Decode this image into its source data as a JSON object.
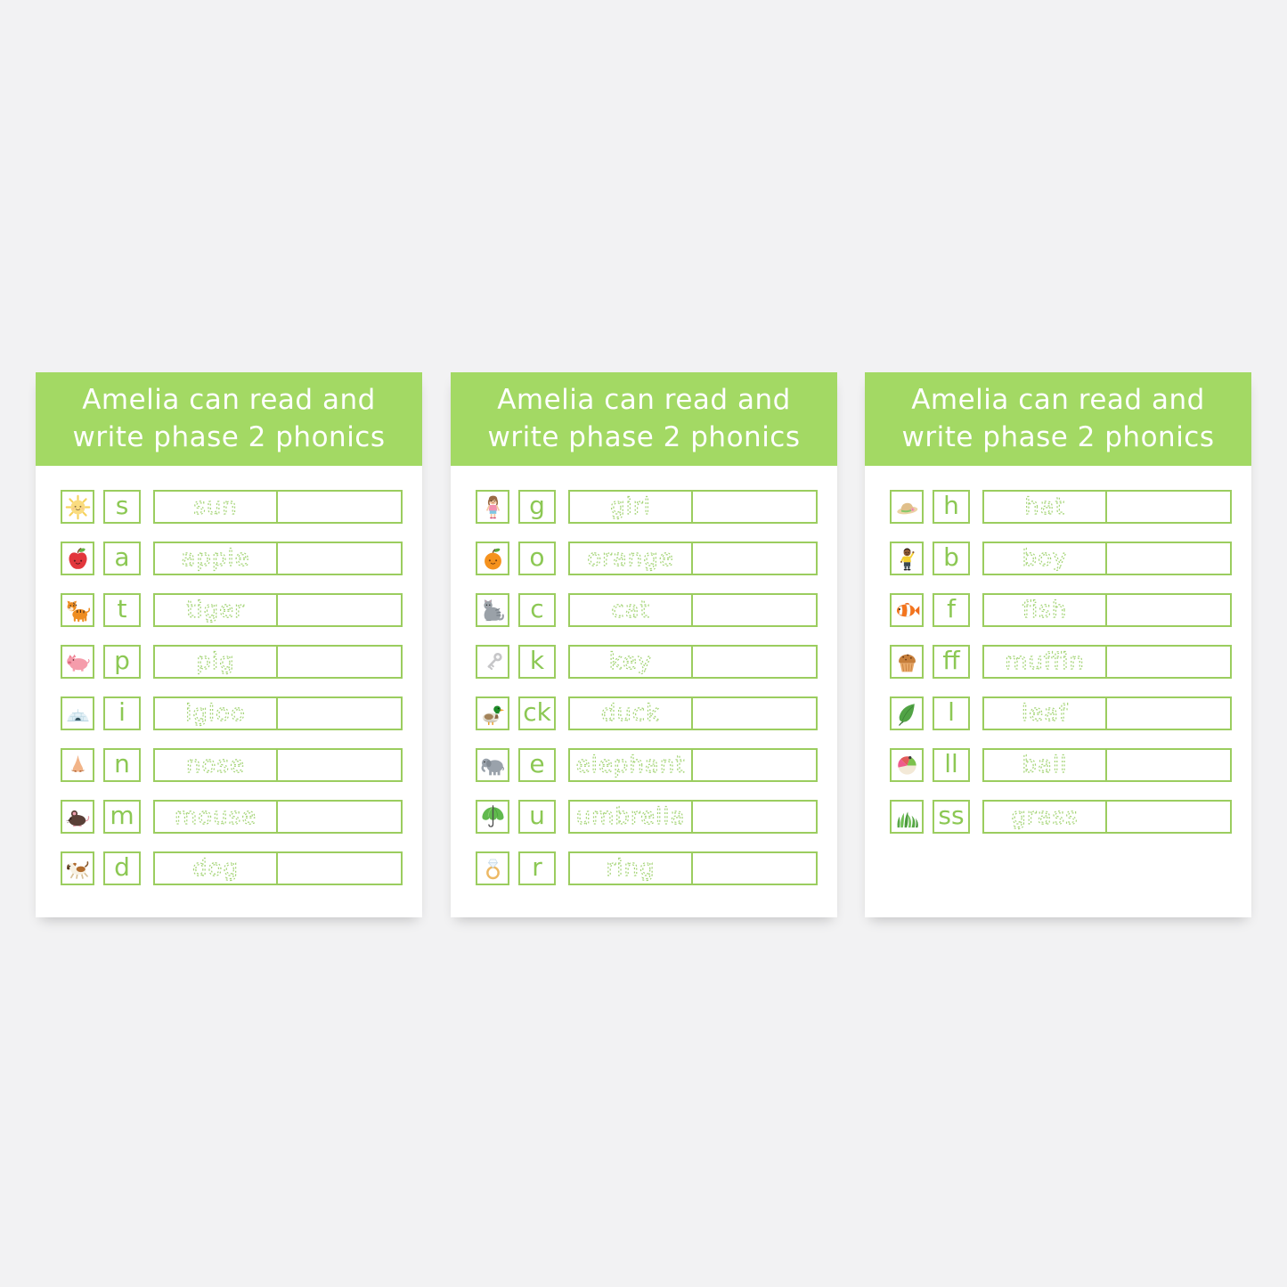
{
  "page": {
    "background_color": "#f2f2f3",
    "card_color": "#ffffff"
  },
  "colors": {
    "header_green": "#a3d964",
    "header_text": "#ffffff",
    "box_border_green": "#9bcd5f",
    "letter_green": "#8cc854",
    "trace_green": "#a4d476"
  },
  "cards": [
    {
      "title_line1": "Amelia can read and",
      "title_line2": "write phase 2 phonics",
      "rows": [
        {
          "icon": "sun-icon",
          "letter": "s",
          "word": "sun"
        },
        {
          "icon": "apple-icon",
          "letter": "a",
          "word": "apple"
        },
        {
          "icon": "tiger-icon",
          "letter": "t",
          "word": "tiger"
        },
        {
          "icon": "pig-icon",
          "letter": "p",
          "word": "pig"
        },
        {
          "icon": "igloo-icon",
          "letter": "i",
          "word": "igloo"
        },
        {
          "icon": "nose-icon",
          "letter": "n",
          "word": "nose"
        },
        {
          "icon": "mouse-icon",
          "letter": "m",
          "word": "mouse"
        },
        {
          "icon": "dog-icon",
          "letter": "d",
          "word": "dog"
        }
      ]
    },
    {
      "title_line1": "Amelia can read and",
      "title_line2": "write phase 2 phonics",
      "rows": [
        {
          "icon": "girl-icon",
          "letter": "g",
          "word": "girl"
        },
        {
          "icon": "orange-icon",
          "letter": "o",
          "word": "orange"
        },
        {
          "icon": "cat-icon",
          "letter": "c",
          "word": "cat"
        },
        {
          "icon": "key-icon",
          "letter": "k",
          "word": "key"
        },
        {
          "icon": "duck-icon",
          "letter": "ck",
          "word": "duck"
        },
        {
          "icon": "elephant-icon",
          "letter": "e",
          "word": "elephant"
        },
        {
          "icon": "umbrella-icon",
          "letter": "u",
          "word": "umbrella"
        },
        {
          "icon": "ring-icon",
          "letter": "r",
          "word": "ring"
        }
      ]
    },
    {
      "title_line1": "Amelia can read and",
      "title_line2": "write phase 2 phonics",
      "rows": [
        {
          "icon": "hat-icon",
          "letter": "h",
          "word": "hat"
        },
        {
          "icon": "boy-icon",
          "letter": "b",
          "word": "boy"
        },
        {
          "icon": "fish-icon",
          "letter": "f",
          "word": "fish"
        },
        {
          "icon": "muffin-icon",
          "letter": "ff",
          "word": "muffin"
        },
        {
          "icon": "leaf-icon",
          "letter": "l",
          "word": "leaf"
        },
        {
          "icon": "ball-icon",
          "letter": "ll",
          "word": "ball"
        },
        {
          "icon": "grass-icon",
          "letter": "ss",
          "word": "grass"
        }
      ]
    }
  ]
}
